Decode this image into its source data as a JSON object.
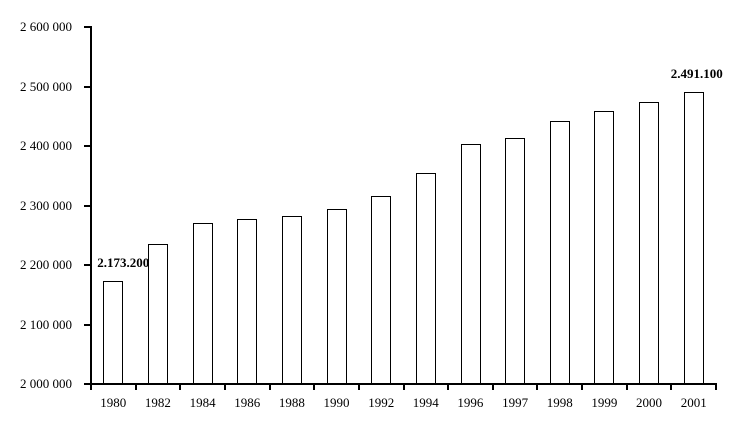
{
  "chart_data": {
    "type": "bar",
    "title": "",
    "xlabel": "",
    "ylabel": "",
    "categories": [
      "1980",
      "1982",
      "1984",
      "1986",
      "1988",
      "1990",
      "1992",
      "1994",
      "1996",
      "1997",
      "1998",
      "1999",
      "2000",
      "2001"
    ],
    "values": [
      2173200,
      2236000,
      2270000,
      2277000,
      2283000,
      2295000,
      2316000,
      2354000,
      2403000,
      2414000,
      2442000,
      2459000,
      2474000,
      2491100
    ],
    "ylim": [
      2000000,
      2600000
    ],
    "y_tick_step": 100000,
    "y_tick_labels": [
      "2 000 000",
      "2 100 000",
      "2 200 000",
      "2 300 000",
      "2 400 000",
      "2 500 000",
      "2 600 000"
    ],
    "grid": false,
    "legend": false,
    "background": "#ffffff",
    "bar_fill": "#ffffff",
    "bar_border": "#000000",
    "axis_color": "#000000",
    "annotations": [
      {
        "category_index": 0,
        "text": "2.173.200",
        "dx": 10
      },
      {
        "category_index": 13,
        "text": "2.491.100",
        "dx": 3
      }
    ]
  }
}
